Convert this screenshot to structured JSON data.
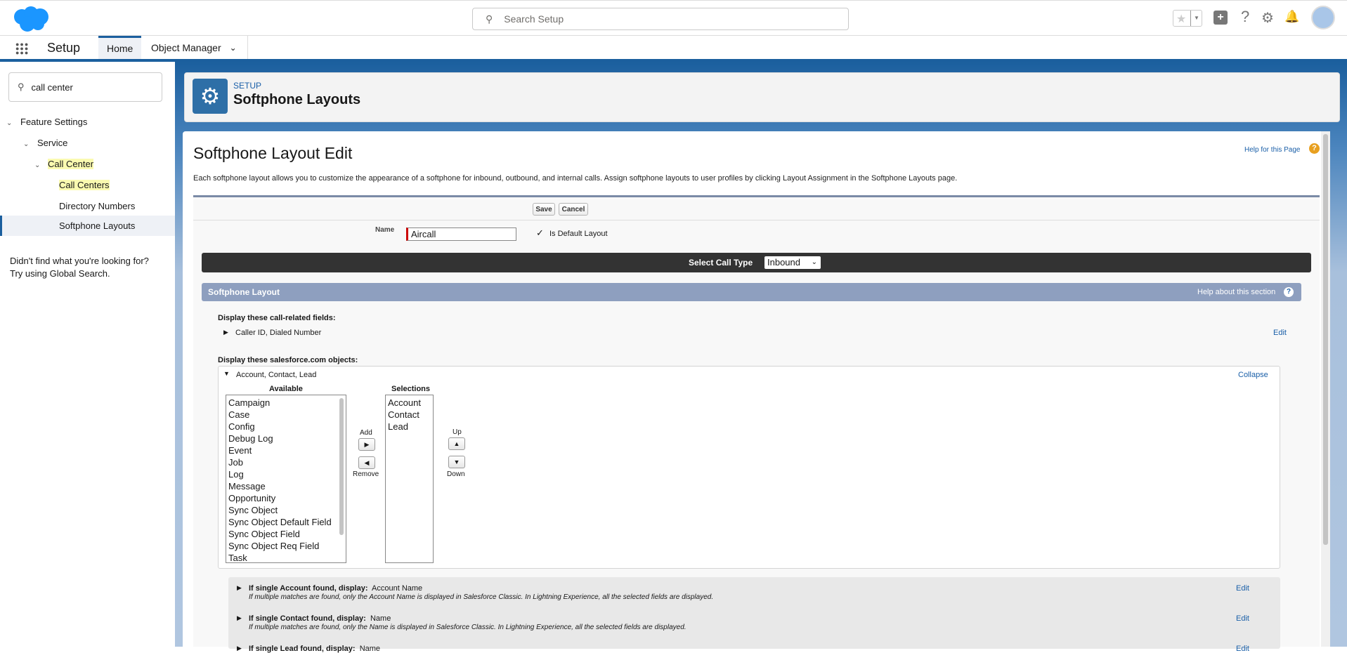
{
  "topbar": {
    "search_placeholder": "Search Setup"
  },
  "nav": {
    "app_name": "Setup",
    "tabs": [
      {
        "label": "Home"
      },
      {
        "label": "Object Manager"
      }
    ]
  },
  "sidebar": {
    "search_value": "call center",
    "tree": [
      {
        "label": "Feature Settings"
      },
      {
        "label": "Service"
      },
      {
        "label": "Call Center"
      },
      {
        "label": "Call Centers"
      },
      {
        "label": "Directory Numbers"
      },
      {
        "label": "Softphone Layouts"
      }
    ],
    "help_line1": "Didn't find what you're looking for?",
    "help_line2": "Try using Global Search."
  },
  "header": {
    "eyebrow": "SETUP",
    "title": "Softphone Layouts"
  },
  "page": {
    "title": "Softphone Layout Edit",
    "help_link": "Help for this Page",
    "description": "Each softphone layout allows you to customize the appearance of a softphone for inbound, outbound, and internal calls. Assign softphone layouts to user profiles by clicking Layout Assignment in the Softphone Layouts page."
  },
  "form": {
    "save": "Save",
    "cancel": "Cancel",
    "name_label": "Name",
    "name_value": "Aircall",
    "default_label": "Is Default Layout",
    "default_checked": true,
    "call_type_label": "Select Call Type",
    "call_type_value": "Inbound",
    "section_title": "Softphone Layout",
    "section_help": "Help about this section",
    "call_fields_label": "Display these call-related fields:",
    "call_fields_value": "Caller ID, Dialed Number",
    "edit": "Edit",
    "objects_label": "Display these salesforce.com objects:",
    "objects_value": "Account, Contact, Lead",
    "collapse": "Collapse",
    "available_label": "Available",
    "selections_label": "Selections",
    "available": [
      "Campaign",
      "Case",
      "Config",
      "Debug Log",
      "Event",
      "Job",
      "Log",
      "Message",
      "Opportunity",
      "Sync Object",
      "Sync Object Default Field",
      "Sync Object Field",
      "Sync Object Req Field",
      "Task"
    ],
    "selections": [
      "Account",
      "Contact",
      "Lead"
    ],
    "add": "Add",
    "remove": "Remove",
    "up": "Up",
    "down": "Down",
    "rules": [
      {
        "title": "If single Account found, display:",
        "value": "Account Name",
        "note": "If multiple matches are found, only the Account Name is displayed in Salesforce Classic. In Lightning Experience, all the selected fields are displayed."
      },
      {
        "title": "If single Contact found, display:",
        "value": "Name",
        "note": "If multiple matches are found, only the Name is displayed in Salesforce Classic. In Lightning Experience, all the selected fields are displayed."
      },
      {
        "title": "If single Lead found, display:",
        "value": "Name",
        "note": ""
      }
    ]
  },
  "colors": {
    "brand": "#1b96ff",
    "nav_border": "#1b5f9e",
    "section_header": "#8e9fbf",
    "call_type_bar": "#333333",
    "link": "#1a5fa8"
  }
}
